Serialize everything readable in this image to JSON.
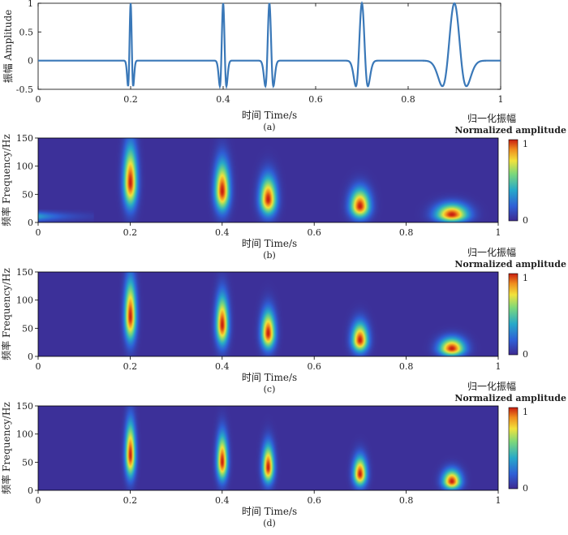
{
  "panel_a": {
    "xlabel": "时间 Time/s",
    "ylabel": "振幅 Amplitude",
    "caption": "(a)",
    "xticks": [
      "0",
      "0.2",
      "0.4",
      "0.6",
      "0.8",
      "1"
    ],
    "yticks": [
      "1",
      "0.5",
      "0",
      "-0.5"
    ]
  },
  "panels_tf": [
    {
      "caption": "(b)",
      "xlabel": "时间 Time/s",
      "ylabel": "频率 Frequency/Hz",
      "colorbar_title_cn": "归一化振幅",
      "colorbar_title_en": "Normalized amplitude",
      "colorbar_ticks": [
        "1",
        "0"
      ],
      "xticks": [
        "0",
        "0.2",
        "0.4",
        "0.6",
        "0.8",
        "1"
      ],
      "yticks": [
        "150",
        "100",
        "50",
        "0"
      ]
    },
    {
      "caption": "(c)",
      "xlabel": "时间 Time/s",
      "ylabel": "频率 Frequency/Hz",
      "colorbar_title_cn": "归一化振幅",
      "colorbar_title_en": "Normalized amplitude",
      "colorbar_ticks": [
        "1",
        "0"
      ],
      "xticks": [
        "0",
        "0.2",
        "0.4",
        "0.6",
        "0.8",
        "1"
      ],
      "yticks": [
        "150",
        "100",
        "50",
        "0"
      ]
    },
    {
      "caption": "(d)",
      "xlabel": "时间 Time/s",
      "ylabel": "频率 Frequency/Hz",
      "colorbar_title_cn": "归一化振幅",
      "colorbar_title_en": "Normalized amplitude",
      "colorbar_ticks": [
        "1",
        "0"
      ],
      "xticks": [
        "0",
        "0.2",
        "0.4",
        "0.6",
        "0.8",
        "1"
      ],
      "yticks": [
        "150",
        "100",
        "50",
        "0"
      ]
    }
  ],
  "colors": {
    "line": "#3a78b8",
    "colormap": [
      "#3e2a91",
      "#2f5fd6",
      "#27a9c9",
      "#7dd87a",
      "#f2e23c",
      "#f08c1e",
      "#c81d10"
    ]
  },
  "chart_data": [
    {
      "type": "line",
      "xlim": [
        0,
        1
      ],
      "ylim": [
        -0.5,
        1
      ],
      "series": [
        {
          "wavelets": [
            {
              "t0": 0.2,
              "freq": 70,
              "amplitude": 1
            },
            {
              "t0": 0.4,
              "freq": 55,
              "amplitude": 1
            },
            {
              "t0": 0.5,
              "freq": 45,
              "amplitude": 1
            },
            {
              "t0": 0.7,
              "freq": 30,
              "amplitude": 1
            },
            {
              "t0": 0.9,
              "freq": 15,
              "amplitude": 1
            }
          ]
        }
      ]
    },
    {
      "type": "heatmap",
      "xlim": [
        0,
        1
      ],
      "ylim": [
        0,
        150
      ],
      "zlim": [
        0,
        1
      ],
      "blobs": [
        {
          "t": 0.2,
          "f": 70,
          "amplitude": 1.0
        },
        {
          "t": 0.4,
          "f": 55,
          "amplitude": 1.0
        },
        {
          "t": 0.5,
          "f": 40,
          "amplitude": 1.0
        },
        {
          "t": 0.7,
          "f": 28,
          "amplitude": 1.0
        },
        {
          "t": 0.9,
          "f": 13,
          "amplitude": 1.0
        }
      ]
    },
    {
      "type": "heatmap",
      "xlim": [
        0,
        1
      ],
      "ylim": [
        0,
        150
      ],
      "zlim": [
        0,
        1
      ],
      "blobs": [
        {
          "t": 0.2,
          "f": 70,
          "amplitude": 1.0
        },
        {
          "t": 0.4,
          "f": 55,
          "amplitude": 1.0
        },
        {
          "t": 0.5,
          "f": 40,
          "amplitude": 1.0
        },
        {
          "t": 0.7,
          "f": 28,
          "amplitude": 1.0
        },
        {
          "t": 0.9,
          "f": 13,
          "amplitude": 1.0
        }
      ]
    },
    {
      "type": "heatmap",
      "xlim": [
        0,
        1
      ],
      "ylim": [
        0,
        150
      ],
      "zlim": [
        0,
        1
      ],
      "blobs": [
        {
          "t": 0.2,
          "f": 62,
          "amplitude": 1.0
        },
        {
          "t": 0.4,
          "f": 50,
          "amplitude": 1.0
        },
        {
          "t": 0.5,
          "f": 40,
          "amplitude": 1.0
        },
        {
          "t": 0.7,
          "f": 28,
          "amplitude": 1.0
        },
        {
          "t": 0.9,
          "f": 15,
          "amplitude": 1.0
        }
      ]
    }
  ]
}
